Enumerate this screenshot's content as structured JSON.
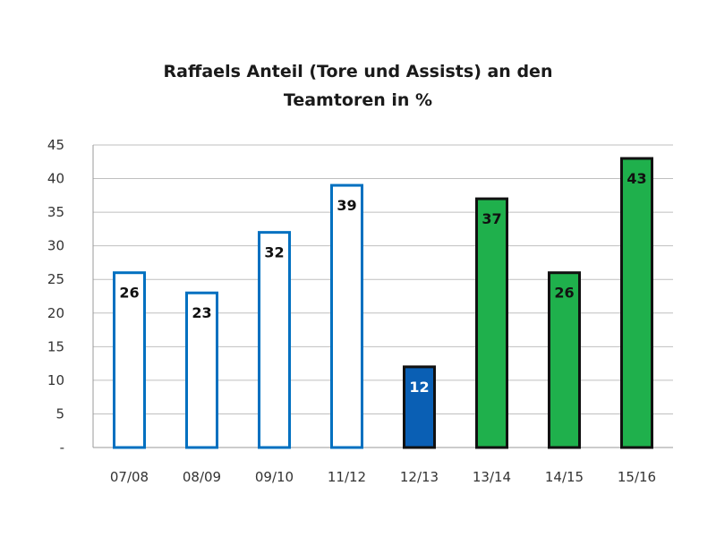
{
  "chart_data": {
    "type": "bar",
    "title_lines": [
      "Raffaels Anteil (Tore und Assists) an den",
      "Teamtoren in %"
    ],
    "categories": [
      "07/08",
      "08/09",
      "09/10",
      "11/12",
      "12/13",
      "13/14",
      "14/15",
      "15/16"
    ],
    "values": [
      26,
      23,
      32,
      39,
      12,
      37,
      26,
      43
    ],
    "data_labels": [
      "26",
      "23",
      "32",
      "39",
      "12",
      "37",
      "26",
      "43"
    ],
    "ylim": [
      0,
      45
    ],
    "y_ticks": [
      0,
      5,
      10,
      15,
      20,
      25,
      30,
      35,
      40,
      45
    ],
    "y_tick_labels": [
      "-",
      "5",
      "10",
      "15",
      "20",
      "25",
      "30",
      "35",
      "40",
      "45"
    ],
    "grid": true,
    "bar_styles": [
      "outline-blue",
      "outline-blue",
      "outline-blue",
      "outline-blue",
      "solid-blue",
      "solid-green",
      "solid-green",
      "solid-green"
    ],
    "colors": {
      "outline_blue": "#0070c0",
      "solid_blue": "#0a5fb4",
      "solid_green": "#1fb04c",
      "bar_edge_dark": "#111111",
      "grid": "#bfbfbf"
    }
  }
}
